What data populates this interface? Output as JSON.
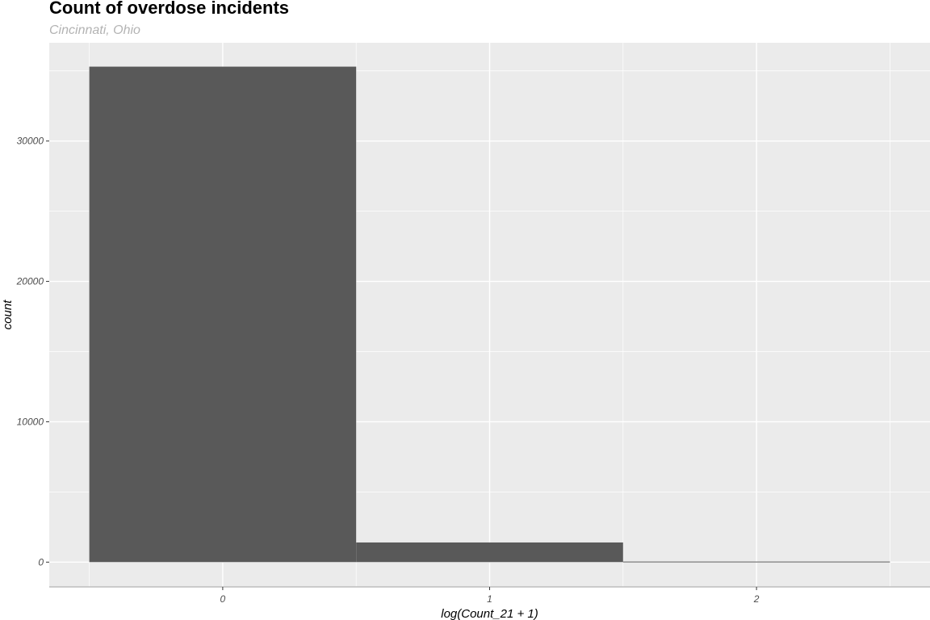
{
  "chart_data": {
    "type": "bar",
    "title": "Count of overdose incidents",
    "subtitle": "Cincinnati, Ohio",
    "xlabel": "log(Count_21 + 1)",
    "ylabel": "count",
    "bins": [
      {
        "x_start": -0.5,
        "x_end": 0.5,
        "value": 35300
      },
      {
        "x_start": 0.5,
        "x_end": 1.5,
        "value": 1400
      },
      {
        "x_start": 1.5,
        "x_end": 2.5,
        "value": 40
      }
    ],
    "xlim": [
      -0.65,
      2.65
    ],
    "ylim": [
      -1765,
      37000
    ],
    "x_ticks": [
      0,
      1,
      2
    ],
    "x_tick_labels": [
      "0",
      "1",
      "2"
    ],
    "y_ticks": [
      0,
      10000,
      20000,
      30000
    ],
    "y_tick_labels": [
      "0",
      "10000",
      "20000",
      "30000"
    ],
    "grid": true,
    "colors": {
      "panel_background": "#ebebeb",
      "grid_major": "#ffffff",
      "bar_fill": "#595959",
      "axis_line": "#bdbdbd"
    }
  }
}
